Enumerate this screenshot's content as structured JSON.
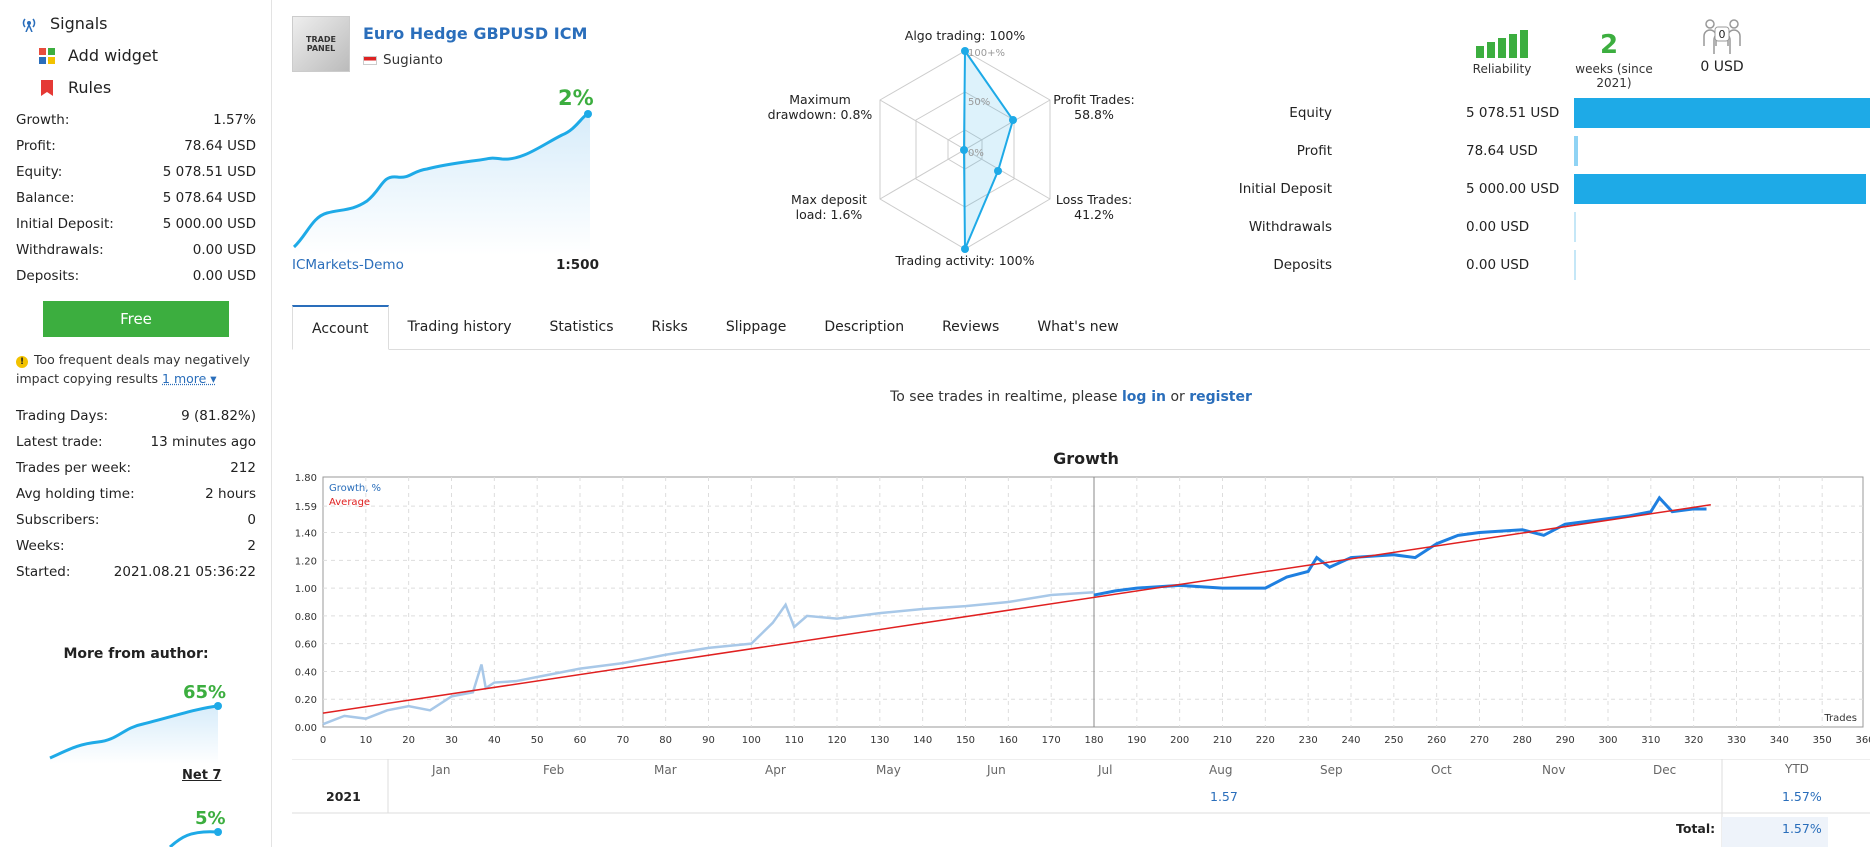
{
  "sidebar": {
    "nav": [
      {
        "label": "Signals",
        "icon": "signal-antenna-icon"
      },
      {
        "label": "Add widget",
        "icon": "widget-grid-icon"
      },
      {
        "label": "Rules",
        "icon": "bookmark-icon"
      }
    ],
    "stats": [
      {
        "label": "Growth:",
        "value": "1.57%"
      },
      {
        "label": "Profit:",
        "value": "78.64 USD"
      },
      {
        "label": "Equity:",
        "value": "5 078.51 USD"
      },
      {
        "label": "Balance:",
        "value": "5 078.64 USD"
      },
      {
        "label": "Initial Deposit:",
        "value": "5 000.00 USD"
      },
      {
        "label": "Withdrawals:",
        "value": "0.00 USD"
      },
      {
        "label": "Deposits:",
        "value": "0.00 USD"
      }
    ],
    "free_button": "Free",
    "warning": {
      "text": "Too frequent deals may negatively impact copying results",
      "more": "1 more ▾"
    },
    "stats2": [
      {
        "label": "Trading Days:",
        "value": "9 (81.82%)"
      },
      {
        "label": "Latest trade:",
        "value": "13 minutes ago"
      },
      {
        "label": "Trades per week:",
        "value": "212"
      },
      {
        "label": "Avg holding time:",
        "value": "2 hours"
      },
      {
        "label": "Subscribers:",
        "value": "0"
      },
      {
        "label": "Weeks:",
        "value": "2"
      },
      {
        "label": "Started:",
        "value": "2021.08.21 05:36:22"
      }
    ],
    "more_from_author": "More from author:",
    "author_signals": [
      {
        "growth": "65%",
        "name": "Net 7"
      },
      {
        "growth": "5%"
      }
    ]
  },
  "header": {
    "logo_text": "TRADE PANEL",
    "title": "Euro Hedge GBPUSD ICM",
    "author": "Sugianto",
    "growth": "2%",
    "broker": "ICMarkets-Demo",
    "leverage": "1:500"
  },
  "radar": {
    "algo": "Algo trading: 100%",
    "profit_trades": "Profit Trades: 58.8%",
    "loss_trades": "Loss Trades: 41.2%",
    "activity": "Trading activity: 100%",
    "deposit_load": "Max deposit load: 1.6%",
    "drawdown": "Maximum drawdown: 0.8%",
    "rings": [
      "100+%",
      "50%",
      "0%"
    ]
  },
  "reliability": {
    "label": "Reliability",
    "weeks": "2",
    "weeks_label": "weeks (since 2021)",
    "subscribers_badge": "0",
    "funds": "0 USD"
  },
  "finance": [
    {
      "label": "Equity",
      "value": "5 078.51 USD",
      "fill": 1.0
    },
    {
      "label": "Profit",
      "value": "78.64 USD",
      "fill": 0.015
    },
    {
      "label": "Initial Deposit",
      "value": "5 000.00 USD",
      "fill": 0.985
    },
    {
      "label": "Withdrawals",
      "value": "0.00 USD",
      "fill": 0
    },
    {
      "label": "Deposits",
      "value": "0.00 USD",
      "fill": 0
    }
  ],
  "tabs": [
    "Account",
    "Trading history",
    "Statistics",
    "Risks",
    "Slippage",
    "Description",
    "Reviews",
    "What's new"
  ],
  "realtime": {
    "prefix": "To see trades in realtime, please",
    "login": "log in",
    "or": "or",
    "register": "register"
  },
  "chart_data": {
    "type": "line",
    "title": "Growth",
    "xlabel": "Trades",
    "ylabel": "",
    "xlim": [
      0,
      360
    ],
    "ylim": [
      0,
      1.8
    ],
    "yticks": [
      "0.00",
      "0.20",
      "0.40",
      "0.60",
      "0.80",
      "1.00",
      "1.20",
      "1.40",
      "1.59",
      "1.80"
    ],
    "xticks": [
      0,
      10,
      20,
      30,
      40,
      50,
      60,
      70,
      80,
      90,
      100,
      110,
      120,
      130,
      140,
      150,
      160,
      170,
      180,
      190,
      200,
      210,
      220,
      230,
      240,
      250,
      260,
      270,
      280,
      290,
      300,
      310,
      320,
      330,
      340,
      350,
      360
    ],
    "months": [
      "Jan",
      "Feb",
      "Mar",
      "Apr",
      "May",
      "Jun",
      "Jul",
      "Aug",
      "Sep",
      "Oct",
      "Nov",
      "Dec"
    ],
    "legend": [
      "Growth, %",
      "Average"
    ],
    "series": [
      {
        "name": "Growth, %",
        "x": [
          0,
          5,
          10,
          15,
          20,
          25,
          30,
          35,
          37,
          38,
          40,
          45,
          50,
          60,
          70,
          80,
          90,
          100,
          105,
          108,
          110,
          113,
          120,
          130,
          140,
          150,
          160,
          170,
          180
        ],
        "y": [
          0.02,
          0.08,
          0.06,
          0.12,
          0.15,
          0.12,
          0.22,
          0.25,
          0.45,
          0.28,
          0.32,
          0.33,
          0.36,
          0.42,
          0.46,
          0.52,
          0.57,
          0.6,
          0.75,
          0.88,
          0.72,
          0.8,
          0.78,
          0.82,
          0.85,
          0.87,
          0.9,
          0.95,
          0.97
        ]
      },
      {
        "name": "Growth, %",
        "x": [
          180,
          185,
          190,
          200,
          210,
          220,
          225,
          230,
          232,
          235,
          240,
          250,
          255,
          260,
          265,
          270,
          280,
          285,
          290,
          300,
          305,
          310,
          312,
          315,
          320,
          323
        ],
        "y": [
          0.95,
          0.98,
          1.0,
          1.02,
          1.0,
          1.0,
          1.08,
          1.12,
          1.22,
          1.15,
          1.22,
          1.24,
          1.22,
          1.32,
          1.38,
          1.4,
          1.42,
          1.38,
          1.46,
          1.5,
          1.52,
          1.55,
          1.65,
          1.55,
          1.57,
          1.57
        ]
      },
      {
        "name": "Average",
        "x": [
          0,
          324
        ],
        "y": [
          0.1,
          1.6
        ]
      }
    ]
  },
  "ytd": {
    "year": "2021",
    "aug_value": "1.57",
    "ytd_header": "YTD",
    "ytd_value": "1.57%",
    "total_label": "Total:",
    "total_value": "1.57%"
  }
}
